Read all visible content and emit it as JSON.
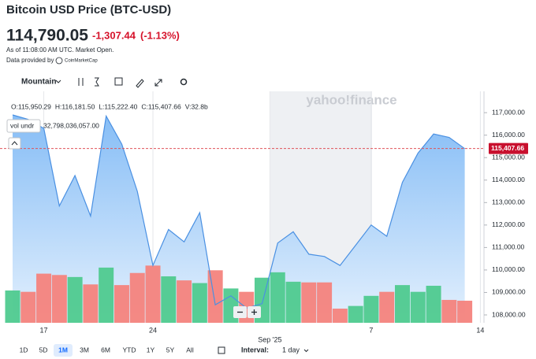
{
  "header": {
    "title": "Bitcoin USD Price (BTC-USD)",
    "price": "114,790.05",
    "change": "-1,307.44",
    "change_percent": "(-1.13%)",
    "timestamp": "As of 11:08:00 AM UTC. Market Open.",
    "provider_prefix": "Data provided by",
    "provider": "CoinMarketCap"
  },
  "toolbar": {
    "chart_type": "Mountain"
  },
  "chart": {
    "type": "area",
    "ohlcv": [
      "O:115,950.29",
      "H:116,181.50",
      "L:115,222.40",
      "C:115,407.66",
      "V:32.8b"
    ],
    "volume_tooltip": {
      "label": "vol undr",
      "value": "32,798,036,057.00"
    },
    "watermark": "yahoo!finance",
    "categories": [
      null,
      null,
      "17",
      null,
      null,
      null,
      null,
      null,
      null,
      "24",
      null,
      null,
      null,
      null,
      null,
      null,
      null,
      null,
      null,
      null,
      null,
      null,
      null,
      "7",
      null,
      null,
      null,
      null,
      null,
      null,
      "14"
    ],
    "month_label": "Sep '25",
    "values": [
      116900,
      116700,
      116300,
      112850,
      114200,
      112400,
      116850,
      115600,
      113500,
      110200,
      111800,
      111250,
      112550,
      108450,
      108850,
      108300,
      108500,
      111200,
      111700,
      110700,
      110600,
      110200,
      111100,
      112000,
      111500,
      113900,
      115200,
      116050,
      115900,
      115400,
      null
    ],
    "color": "#4a90e2",
    "volume": {
      "values": [
        48,
        46,
        73,
        71,
        68,
        57,
        82,
        56,
        74,
        85,
        69,
        63,
        59,
        78,
        51,
        46,
        67,
        75,
        61,
        60,
        60,
        21,
        25,
        40,
        46,
        56,
        46,
        55,
        34,
        32.8,
        null
      ],
      "directions": [
        "up",
        "down",
        "down",
        "down",
        "up",
        "down",
        "up",
        "down",
        "down",
        "down",
        "up",
        "down",
        "up",
        "down",
        "up",
        "down",
        "up",
        "up",
        "up",
        "down",
        "down",
        "down",
        "up",
        "up",
        "down",
        "up",
        "up",
        "up",
        "down",
        "down",
        null
      ],
      "colors": {
        "up": "#4fca8f",
        "down": "#f4837d"
      }
    },
    "ylim": [
      107650,
      117950
    ],
    "yticks": [
      {
        "value": 108000,
        "label": "108,000.00"
      },
      {
        "value": 109000,
        "label": "109,000.00"
      },
      {
        "value": 110000,
        "label": "110,000.00"
      },
      {
        "value": 111000,
        "label": "111,000.00"
      },
      {
        "value": 112000,
        "label": "112,000.00"
      },
      {
        "value": 113000,
        "label": "113,000.00"
      },
      {
        "value": 114000,
        "label": "114,000.00"
      },
      {
        "value": 115000,
        "label": "115,000.00"
      },
      {
        "value": 116000,
        "label": "116,000.00"
      },
      {
        "value": 117000,
        "label": "117,000.00"
      }
    ],
    "last_price": {
      "value": 115407.66,
      "label": "115,407.66"
    },
    "grid": true
  },
  "range_buttons": [
    "1D",
    "5D",
    "1M",
    "3M",
    "6M",
    "YTD",
    "1Y",
    "5Y",
    "All"
  ],
  "selected_range": 2,
  "interval": {
    "label": "Interval:",
    "value": "1 day"
  }
}
